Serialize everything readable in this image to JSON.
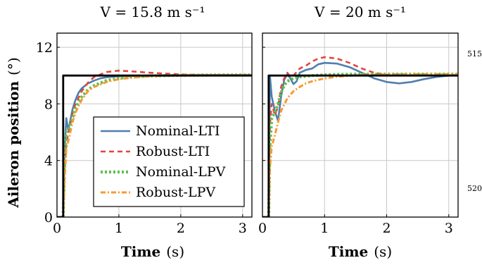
{
  "colors": {
    "nominal_lti": "#4f7fad",
    "robust_lti": "#e0473b",
    "nominal_lpv": "#5fbf4f",
    "robust_lpv": "#f79a2e",
    "reference": "#000000"
  },
  "line_numbers": [
    "515",
    "520"
  ],
  "chart_data": [
    {
      "type": "line",
      "title": "V = 15.8 m s⁻¹",
      "xlabel_bold": "Time",
      "xlabel_unit": "(s)",
      "ylabel_bold": "Aileron position",
      "ylabel_unit": "(°)",
      "xlim": [
        0,
        3.15
      ],
      "ylim": [
        0,
        13
      ],
      "xticks": [
        "0",
        "1",
        "2",
        "3"
      ],
      "yticks": [
        "0",
        "4",
        "8",
        "12"
      ],
      "grid": true,
      "legend": {
        "position": "lower-right",
        "entries": [
          "Nominal-LTI",
          "Robust-LTI",
          "Nominal-LPV",
          "Robust-LPV"
        ]
      },
      "series": [
        {
          "name": "Nominal-LTI",
          "x": [
            0.1,
            0.12,
            0.15,
            0.18,
            0.2,
            0.25,
            0.3,
            0.35,
            0.4,
            0.5,
            0.6,
            0.7,
            0.8,
            1.0,
            1.2,
            1.5,
            2.0,
            2.5,
            3.15
          ],
          "y": [
            0,
            4.5,
            7.0,
            6.2,
            6.5,
            7.6,
            8.3,
            8.8,
            9.1,
            9.45,
            9.65,
            9.8,
            9.88,
            9.95,
            9.98,
            10.0,
            10.02,
            10.03,
            10.03
          ]
        },
        {
          "name": "Robust-LTI",
          "x": [
            0.1,
            0.12,
            0.15,
            0.2,
            0.25,
            0.3,
            0.4,
            0.5,
            0.6,
            0.8,
            1.0,
            1.2,
            1.5,
            2.0,
            2.5,
            3.15
          ],
          "y": [
            0,
            3.0,
            5.2,
            6.3,
            7.3,
            8.0,
            8.9,
            9.5,
            9.9,
            10.25,
            10.35,
            10.3,
            10.2,
            10.08,
            10.03,
            10.02
          ]
        },
        {
          "name": "Nominal-LPV",
          "x": [
            0.1,
            0.12,
            0.15,
            0.2,
            0.25,
            0.3,
            0.4,
            0.5,
            0.6,
            0.8,
            1.0,
            1.2,
            1.5,
            2.0,
            2.5,
            3.15
          ],
          "y": [
            0,
            3.5,
            6.0,
            6.3,
            7.0,
            7.7,
            8.5,
            9.0,
            9.3,
            9.65,
            9.8,
            9.9,
            9.97,
            10.02,
            10.04,
            10.04
          ]
        },
        {
          "name": "Robust-LPV",
          "x": [
            0.1,
            0.12,
            0.15,
            0.2,
            0.25,
            0.3,
            0.4,
            0.5,
            0.6,
            0.8,
            1.0,
            1.2,
            1.5,
            2.0,
            2.5,
            3.15
          ],
          "y": [
            0,
            2.5,
            4.8,
            5.7,
            6.7,
            7.4,
            8.3,
            8.9,
            9.2,
            9.55,
            9.75,
            9.85,
            9.95,
            10.02,
            10.03,
            10.03
          ]
        },
        {
          "name": "Reference",
          "x": [
            0,
            0.1,
            0.1,
            3.15
          ],
          "y": [
            0,
            0,
            10,
            10
          ]
        }
      ]
    },
    {
      "type": "line",
      "title": "V = 20 m s⁻¹",
      "xlabel_bold": "Time",
      "xlabel_unit": "(s)",
      "xlim": [
        0,
        3.15
      ],
      "ylim": [
        0,
        13
      ],
      "xticks": [
        "0",
        "1",
        "2",
        "3"
      ],
      "grid": true,
      "series": [
        {
          "name": "Nominal-LTI",
          "x": [
            0.1,
            0.12,
            0.15,
            0.2,
            0.25,
            0.3,
            0.35,
            0.4,
            0.45,
            0.5,
            0.55,
            0.6,
            0.7,
            0.8,
            0.9,
            1.0,
            1.2,
            1.4,
            1.6,
            1.8,
            2.0,
            2.2,
            2.4,
            2.6,
            2.8,
            3.0,
            3.15
          ],
          "y": [
            0,
            10.0,
            8.5,
            7.5,
            6.8,
            8.5,
            9.7,
            10.1,
            9.8,
            9.4,
            9.6,
            10.2,
            10.4,
            10.5,
            10.8,
            10.9,
            10.85,
            10.6,
            10.2,
            9.8,
            9.55,
            9.45,
            9.55,
            9.75,
            9.9,
            10.0,
            10.05
          ]
        },
        {
          "name": "Robust-LTI",
          "x": [
            0.1,
            0.12,
            0.15,
            0.2,
            0.25,
            0.3,
            0.35,
            0.4,
            0.45,
            0.5,
            0.6,
            0.7,
            0.8,
            0.9,
            1.0,
            1.2,
            1.4,
            1.6,
            1.8,
            2.0,
            2.5,
            3.15
          ],
          "y": [
            0,
            6.5,
            8.0,
            7.2,
            7.8,
            9.2,
            9.8,
            10.2,
            9.9,
            10.0,
            10.5,
            10.7,
            11.0,
            11.2,
            11.3,
            11.2,
            10.9,
            10.5,
            10.2,
            10.05,
            10.02,
            10.02
          ]
        },
        {
          "name": "Nominal-LPV",
          "x": [
            0.1,
            0.12,
            0.15,
            0.2,
            0.25,
            0.3,
            0.35,
            0.4,
            0.5,
            0.6,
            0.8,
            1.0,
            1.2,
            1.5,
            2.0,
            2.5,
            3.15
          ],
          "y": [
            0,
            5.0,
            7.0,
            7.4,
            8.0,
            8.8,
            9.3,
            9.6,
            9.8,
            9.9,
            10.0,
            10.05,
            10.08,
            10.1,
            10.1,
            10.1,
            10.1
          ]
        },
        {
          "name": "Robust-LPV",
          "x": [
            0.1,
            0.12,
            0.15,
            0.2,
            0.25,
            0.3,
            0.4,
            0.5,
            0.6,
            0.7,
            0.8,
            1.0,
            1.2,
            1.5,
            2.0,
            2.5,
            3.15
          ],
          "y": [
            0,
            3.5,
            5.0,
            5.8,
            6.7,
            7.5,
            8.4,
            8.9,
            9.2,
            9.45,
            9.6,
            9.8,
            9.92,
            10.02,
            10.08,
            10.1,
            10.1
          ]
        },
        {
          "name": "Reference",
          "x": [
            0,
            0.1,
            0.1,
            3.15
          ],
          "y": [
            0,
            0,
            10,
            10
          ]
        }
      ]
    }
  ]
}
